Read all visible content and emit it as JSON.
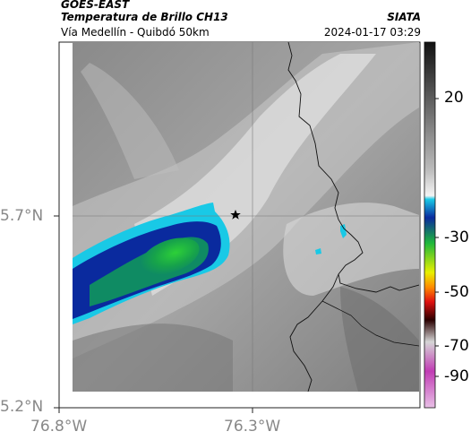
{
  "header": {
    "satellite": "GOES-EAST",
    "product": "Temperatura de Brillo CH13",
    "route": "Vía Medellín - Quibdó 50km",
    "org": "SIATA",
    "datetime": "2024-01-17 03:29"
  },
  "axes": {
    "x_ticks": [
      "76.8°W",
      "76.3°W"
    ],
    "y_ticks": [
      "5.7°N",
      "5.2°N"
    ]
  },
  "colorbar": {
    "labels": [
      "20",
      "-30",
      "-50",
      "-70",
      "-90"
    ]
  },
  "colors": {
    "cold_core": "#1fb83a",
    "cyan": "#19c9e6",
    "deep_blue": "#0a2a9e",
    "marker": "#000000"
  },
  "icons": {
    "marker": "star-icon"
  }
}
